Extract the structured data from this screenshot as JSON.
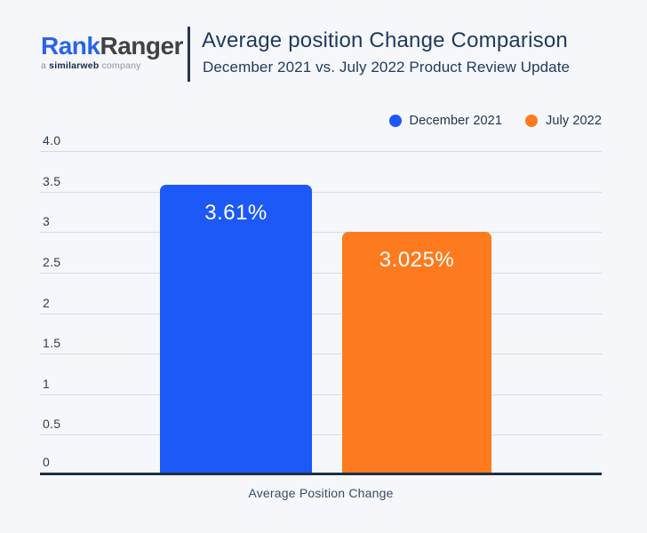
{
  "header": {
    "logo": {
      "part1": "Rank",
      "part2": "Ranger",
      "tagline_prefix": "a ",
      "tagline_brand": "similarweb",
      "tagline_suffix": " company"
    },
    "title": "Average position Change Comparison",
    "subtitle": "December 2021 vs. July 2022 Product Review Update"
  },
  "legend": {
    "items": [
      {
        "label": "December 2021",
        "color": "#1c59f6"
      },
      {
        "label": "July 2022",
        "color": "#fd7b1e"
      }
    ]
  },
  "chart_data": {
    "type": "bar",
    "title": "Average position Change Comparison",
    "subtitle": "December 2021 vs. July 2022 Product Review Update",
    "categories": [
      "Average Position Change"
    ],
    "series": [
      {
        "name": "December 2021",
        "values": [
          3.61
        ],
        "data_label": "3.61%",
        "color": "#1c59f6"
      },
      {
        "name": "July 2022",
        "values": [
          3.025
        ],
        "data_label": "3.025%",
        "color": "#fd7b1e"
      }
    ],
    "xlabel": "Average Position Change",
    "ylabel": "",
    "ylim": [
      0,
      4
    ],
    "yticks": [
      "4.0",
      "3.5",
      "3",
      "2.5",
      "2",
      "1.5",
      "1",
      "0.5",
      "0"
    ],
    "grid": true,
    "legend_position": "top-right"
  },
  "colors": {
    "background": "#f5f7fa",
    "title_text": "#1e3a5c",
    "tick_text": "#2d3e53",
    "gridline": "#d7dbe1",
    "axis_line": "#1d2f47",
    "bar_blue": "#1c59f6",
    "bar_orange": "#fd7b1e",
    "logo_blue": "#2a63e9",
    "logo_dark": "#414246"
  }
}
